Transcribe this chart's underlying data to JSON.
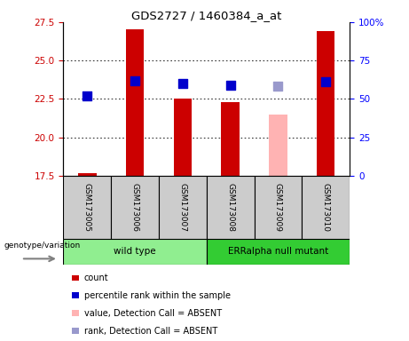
{
  "title": "GDS2727 / 1460384_a_at",
  "samples": [
    "GSM173005",
    "GSM173006",
    "GSM173007",
    "GSM173008",
    "GSM173009",
    "GSM173010"
  ],
  "x_positions": [
    1,
    2,
    3,
    4,
    5,
    6
  ],
  "bar_values": [
    17.68,
    27.05,
    22.5,
    22.3,
    21.5,
    26.9
  ],
  "bar_colors": [
    "#cc0000",
    "#cc0000",
    "#cc0000",
    "#cc0000",
    "#ffb3b3",
    "#cc0000"
  ],
  "dot_values": [
    22.72,
    23.7,
    23.5,
    23.38,
    23.33,
    23.6
  ],
  "dot_colors": [
    "#0000cc",
    "#0000cc",
    "#0000cc",
    "#0000cc",
    "#9999cc",
    "#0000cc"
  ],
  "ylim_left": [
    17.5,
    27.5
  ],
  "ylim_right": [
    0,
    100
  ],
  "yticks_left": [
    17.5,
    20.0,
    22.5,
    25.0,
    27.5
  ],
  "yticks_right": [
    0,
    25,
    50,
    75,
    100
  ],
  "yticklabels_right": [
    "0",
    "25",
    "50",
    "75",
    "100%"
  ],
  "bar_bottom": 17.5,
  "genotype_label": "genotype/variation",
  "wild_type_color": "#90ee90",
  "erralpha_color": "#33cc33",
  "sample_box_color": "#cccccc",
  "legend_items": [
    {
      "color": "#cc0000",
      "label": "count"
    },
    {
      "color": "#0000cc",
      "label": "percentile rank within the sample"
    },
    {
      "color": "#ffb3b3",
      "label": "value, Detection Call = ABSENT"
    },
    {
      "color": "#9999cc",
      "label": "rank, Detection Call = ABSENT"
    }
  ],
  "dot_size": 45,
  "bar_width": 0.38
}
